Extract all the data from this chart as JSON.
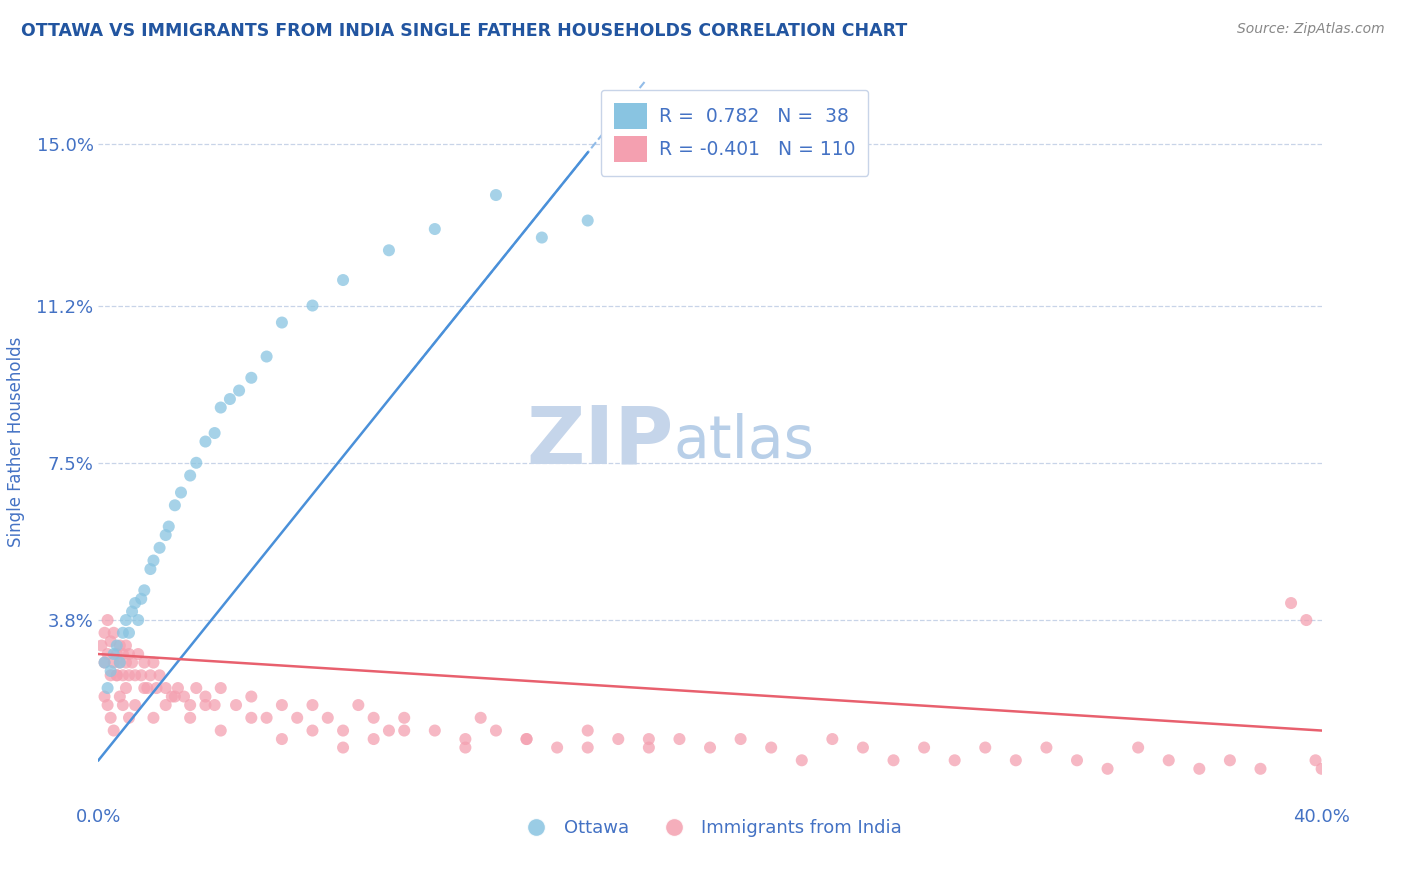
{
  "title": "OTTAWA VS IMMIGRANTS FROM INDIA SINGLE FATHER HOUSEHOLDS CORRELATION CHART",
  "source_text": "Source: ZipAtlas.com",
  "ylabel": "Single Father Households",
  "ytick_labels": [
    "15.0%",
    "11.2%",
    "7.5%",
    "3.8%"
  ],
  "ytick_values": [
    0.15,
    0.112,
    0.075,
    0.038
  ],
  "xlim": [
    0.0,
    0.4
  ],
  "ylim": [
    -0.005,
    0.165
  ],
  "ottawa_R": 0.782,
  "ottawa_N": 38,
  "india_R": -0.401,
  "india_N": 110,
  "ottawa_color": "#89c4e1",
  "india_color": "#f4a0b0",
  "line_ottawa_color": "#4a90d9",
  "line_india_color": "#e8606e",
  "legend_text_color": "#4472c4",
  "title_color": "#2255a0",
  "axis_color": "#4472c4",
  "watermark_zip_color": "#c5d5ea",
  "watermark_atlas_color": "#b8cfe8",
  "grid_color": "#c8d4e8",
  "background_color": "#ffffff",
  "ottawa_seed": 77,
  "india_seed": 42,
  "ottawa_x_data": [
    0.002,
    0.003,
    0.004,
    0.005,
    0.006,
    0.007,
    0.008,
    0.009,
    0.01,
    0.011,
    0.012,
    0.013,
    0.014,
    0.015,
    0.017,
    0.018,
    0.02,
    0.022,
    0.023,
    0.025,
    0.027,
    0.03,
    0.032,
    0.035,
    0.038,
    0.04,
    0.043,
    0.046,
    0.05,
    0.055,
    0.06,
    0.07,
    0.08,
    0.095,
    0.11,
    0.13,
    0.145,
    0.16
  ],
  "ottawa_y_data": [
    0.028,
    0.022,
    0.026,
    0.03,
    0.032,
    0.028,
    0.035,
    0.038,
    0.035,
    0.04,
    0.042,
    0.038,
    0.043,
    0.045,
    0.05,
    0.052,
    0.055,
    0.058,
    0.06,
    0.065,
    0.068,
    0.072,
    0.075,
    0.08,
    0.082,
    0.088,
    0.09,
    0.092,
    0.095,
    0.1,
    0.108,
    0.112,
    0.118,
    0.125,
    0.13,
    0.138,
    0.128,
    0.132
  ],
  "india_x_data": [
    0.001,
    0.002,
    0.002,
    0.003,
    0.003,
    0.004,
    0.004,
    0.005,
    0.005,
    0.006,
    0.006,
    0.007,
    0.007,
    0.008,
    0.008,
    0.009,
    0.009,
    0.01,
    0.01,
    0.011,
    0.012,
    0.013,
    0.014,
    0.015,
    0.016,
    0.017,
    0.018,
    0.019,
    0.02,
    0.022,
    0.024,
    0.026,
    0.028,
    0.03,
    0.032,
    0.035,
    0.038,
    0.04,
    0.045,
    0.05,
    0.055,
    0.06,
    0.065,
    0.07,
    0.075,
    0.08,
    0.085,
    0.09,
    0.095,
    0.1,
    0.11,
    0.12,
    0.125,
    0.13,
    0.14,
    0.15,
    0.16,
    0.17,
    0.18,
    0.19,
    0.2,
    0.21,
    0.22,
    0.23,
    0.24,
    0.25,
    0.26,
    0.27,
    0.28,
    0.29,
    0.3,
    0.31,
    0.32,
    0.33,
    0.34,
    0.35,
    0.36,
    0.37,
    0.38,
    0.39,
    0.395,
    0.398,
    0.4,
    0.002,
    0.003,
    0.004,
    0.005,
    0.006,
    0.007,
    0.008,
    0.009,
    0.01,
    0.012,
    0.015,
    0.018,
    0.022,
    0.025,
    0.03,
    0.035,
    0.04,
    0.05,
    0.06,
    0.07,
    0.08,
    0.09,
    0.1,
    0.12,
    0.14,
    0.16,
    0.18
  ],
  "india_y_data": [
    0.032,
    0.028,
    0.035,
    0.03,
    0.038,
    0.025,
    0.033,
    0.028,
    0.035,
    0.03,
    0.025,
    0.032,
    0.028,
    0.03,
    0.025,
    0.032,
    0.028,
    0.03,
    0.025,
    0.028,
    0.025,
    0.03,
    0.025,
    0.028,
    0.022,
    0.025,
    0.028,
    0.022,
    0.025,
    0.022,
    0.02,
    0.022,
    0.02,
    0.018,
    0.022,
    0.02,
    0.018,
    0.022,
    0.018,
    0.02,
    0.015,
    0.018,
    0.015,
    0.018,
    0.015,
    0.012,
    0.018,
    0.015,
    0.012,
    0.015,
    0.012,
    0.01,
    0.015,
    0.012,
    0.01,
    0.008,
    0.012,
    0.01,
    0.008,
    0.01,
    0.008,
    0.01,
    0.008,
    0.005,
    0.01,
    0.008,
    0.005,
    0.008,
    0.005,
    0.008,
    0.005,
    0.008,
    0.005,
    0.003,
    0.008,
    0.005,
    0.003,
    0.005,
    0.003,
    0.042,
    0.038,
    0.005,
    0.003,
    0.02,
    0.018,
    0.015,
    0.012,
    0.025,
    0.02,
    0.018,
    0.022,
    0.015,
    0.018,
    0.022,
    0.015,
    0.018,
    0.02,
    0.015,
    0.018,
    0.012,
    0.015,
    0.01,
    0.012,
    0.008,
    0.01,
    0.012,
    0.008,
    0.01,
    0.008,
    0.01
  ],
  "ottawa_line_x": [
    0.0,
    0.16
  ],
  "ottawa_line_y": [
    0.005,
    0.148
  ],
  "india_line_x": [
    0.0,
    0.4
  ],
  "india_line_y": [
    0.03,
    0.012
  ]
}
